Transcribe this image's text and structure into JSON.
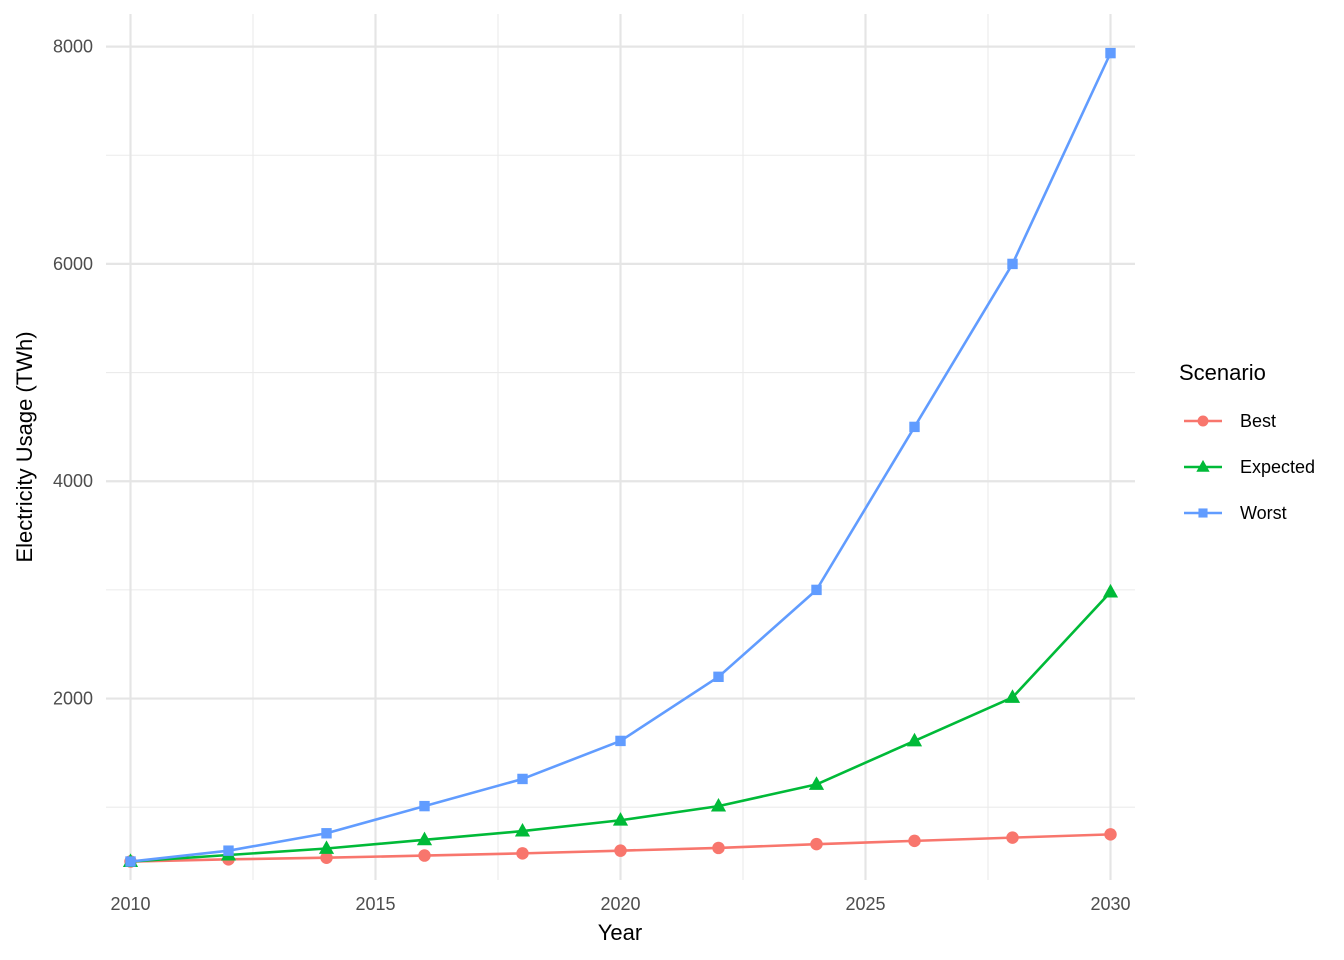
{
  "chart_data": {
    "type": "line",
    "title": "",
    "xlabel": "Year",
    "ylabel": "Electricity Usage (TWh)",
    "x": [
      2010,
      2012,
      2014,
      2016,
      2018,
      2020,
      2022,
      2024,
      2026,
      2028,
      2030
    ],
    "x_ticks": [
      2010,
      2015,
      2020,
      2025,
      2030
    ],
    "y_ticks": [
      2000,
      4000,
      6000,
      8000
    ],
    "xlim": [
      2009.5,
      2030.5
    ],
    "ylim": [
      330,
      8300
    ],
    "grid": true,
    "legend": {
      "title": "Scenario",
      "position": "right"
    },
    "series": [
      {
        "name": "Best",
        "color": "#F8766D",
        "marker": "circle",
        "values": [
          500,
          520,
          535,
          555,
          575,
          600,
          625,
          660,
          690,
          720,
          750
        ]
      },
      {
        "name": "Expected",
        "color": "#00BA38",
        "marker": "triangle",
        "values": [
          500,
          560,
          620,
          700,
          780,
          880,
          1010,
          1210,
          1610,
          2010,
          2980
        ]
      },
      {
        "name": "Worst",
        "color": "#619CFF",
        "marker": "square",
        "values": [
          500,
          600,
          760,
          1010,
          1260,
          1610,
          2200,
          3000,
          4500,
          6000,
          7940
        ]
      }
    ]
  }
}
